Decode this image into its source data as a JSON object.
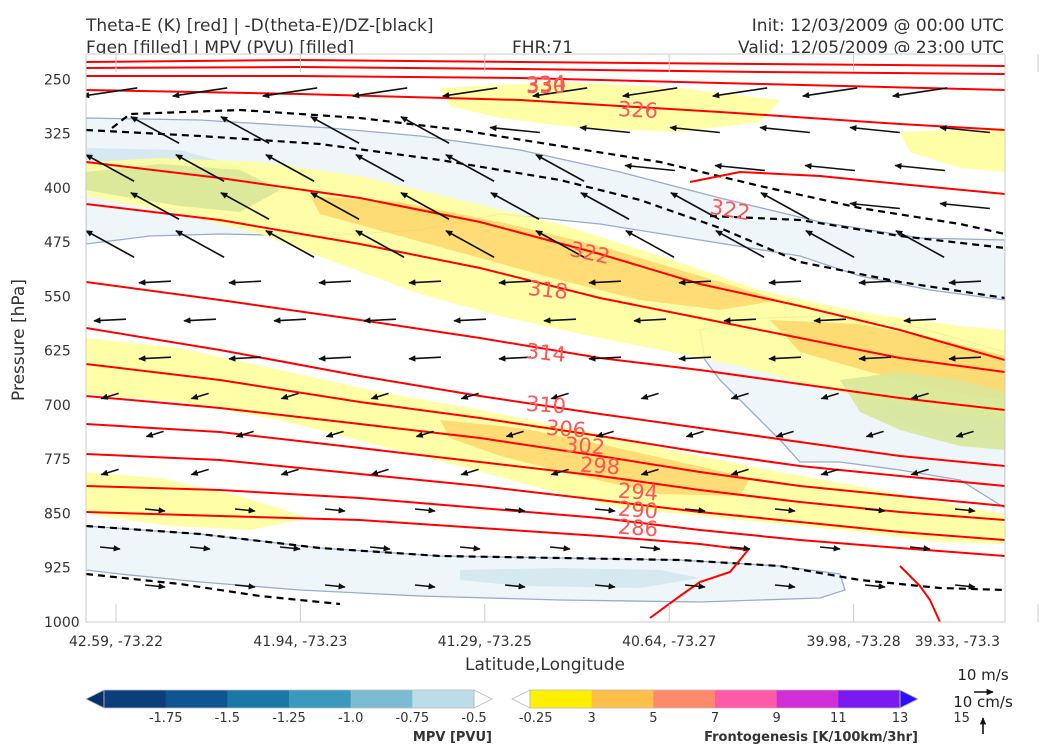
{
  "titles": {
    "left_line1": "Theta-E (K) [red] | -D(theta-E)/DZ-[black]",
    "left_line2": "Fgen [filled] | MPV (PVU) [filled]",
    "fhr": "FHR:71",
    "init": "Init: 12/03/2009 @ 00:00 UTC",
    "valid": "Valid: 12/05/2009 @ 23:00 UTC"
  },
  "chart_data": {
    "type": "cross-section",
    "xlabel": "Latitude,Longitude",
    "ylabel": "Pressure [hPa]",
    "x_ticks": [
      "42.59, -73.22",
      "41.94, -73.23",
      "41.29, -73.25",
      "40.64, -73.27",
      "39.98, -73.28",
      "39.33, -73.3"
    ],
    "y_ticks": [
      250,
      325,
      400,
      475,
      550,
      625,
      700,
      775,
      850,
      925,
      1000
    ],
    "ylim": [
      1000,
      215
    ],
    "theta_e_contours": {
      "color": "#ff0000",
      "labels": [
        "334",
        "330",
        "326",
        "322",
        "322",
        "318",
        "314",
        "310",
        "306",
        "302",
        "298",
        "294",
        "290",
        "286"
      ]
    },
    "fgen_colorbar": {
      "label": "Frontogenesis [K/100km/3hr]",
      "ticks": [
        "3",
        "5",
        "7",
        "9",
        "11",
        "13",
        "15"
      ],
      "colors": [
        "#ffffff",
        "#ffef00",
        "#ffc04a",
        "#ff8a6b",
        "#ff5aa8",
        "#d22ed8",
        "#7a19f2",
        "#2b10fb"
      ]
    },
    "mpv_colorbar": {
      "label": "MPV [PVU]",
      "ticks": [
        "-1.75",
        "-1.5",
        "-1.25",
        "-1.0",
        "-0.75",
        "-0.5",
        "-0.25"
      ],
      "colors": [
        "#08306b",
        "#0b3f7c",
        "#0f5591",
        "#1b77a7",
        "#3a99bd",
        "#7bbcd3",
        "#bcdde8",
        "#ffffff"
      ]
    },
    "vector_key": {
      "horizontal": "10 m/s",
      "vertical": "10 cm/s"
    }
  }
}
